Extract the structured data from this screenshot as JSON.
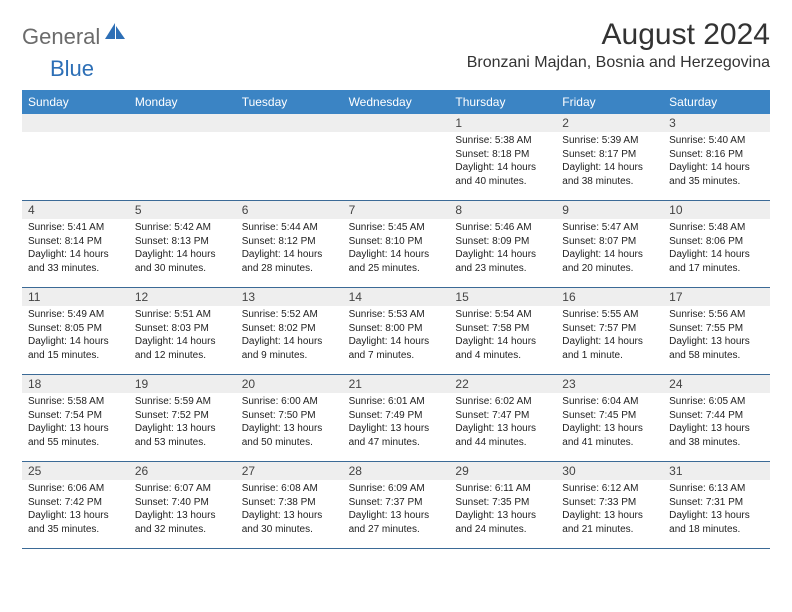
{
  "brand": {
    "text_gray": "General",
    "text_blue": "Blue"
  },
  "title": "August 2024",
  "location": "Bronzani Majdan, Bosnia and Herzegovina",
  "colors": {
    "header_bg": "#3b84c4",
    "header_text": "#ffffff",
    "daynum_bg": "#eeeeee",
    "week_border": "#3b6a96",
    "title_color": "#333333",
    "logo_gray": "#6b6b6b",
    "logo_blue": "#2d6fb6"
  },
  "dow": [
    "Sunday",
    "Monday",
    "Tuesday",
    "Wednesday",
    "Thursday",
    "Friday",
    "Saturday"
  ],
  "weeks": [
    [
      null,
      null,
      null,
      null,
      {
        "n": "1",
        "sr": "Sunrise: 5:38 AM",
        "ss": "Sunset: 8:18 PM",
        "d1": "Daylight: 14 hours",
        "d2": "and 40 minutes."
      },
      {
        "n": "2",
        "sr": "Sunrise: 5:39 AM",
        "ss": "Sunset: 8:17 PM",
        "d1": "Daylight: 14 hours",
        "d2": "and 38 minutes."
      },
      {
        "n": "3",
        "sr": "Sunrise: 5:40 AM",
        "ss": "Sunset: 8:16 PM",
        "d1": "Daylight: 14 hours",
        "d2": "and 35 minutes."
      }
    ],
    [
      {
        "n": "4",
        "sr": "Sunrise: 5:41 AM",
        "ss": "Sunset: 8:14 PM",
        "d1": "Daylight: 14 hours",
        "d2": "and 33 minutes."
      },
      {
        "n": "5",
        "sr": "Sunrise: 5:42 AM",
        "ss": "Sunset: 8:13 PM",
        "d1": "Daylight: 14 hours",
        "d2": "and 30 minutes."
      },
      {
        "n": "6",
        "sr": "Sunrise: 5:44 AM",
        "ss": "Sunset: 8:12 PM",
        "d1": "Daylight: 14 hours",
        "d2": "and 28 minutes."
      },
      {
        "n": "7",
        "sr": "Sunrise: 5:45 AM",
        "ss": "Sunset: 8:10 PM",
        "d1": "Daylight: 14 hours",
        "d2": "and 25 minutes."
      },
      {
        "n": "8",
        "sr": "Sunrise: 5:46 AM",
        "ss": "Sunset: 8:09 PM",
        "d1": "Daylight: 14 hours",
        "d2": "and 23 minutes."
      },
      {
        "n": "9",
        "sr": "Sunrise: 5:47 AM",
        "ss": "Sunset: 8:07 PM",
        "d1": "Daylight: 14 hours",
        "d2": "and 20 minutes."
      },
      {
        "n": "10",
        "sr": "Sunrise: 5:48 AM",
        "ss": "Sunset: 8:06 PM",
        "d1": "Daylight: 14 hours",
        "d2": "and 17 minutes."
      }
    ],
    [
      {
        "n": "11",
        "sr": "Sunrise: 5:49 AM",
        "ss": "Sunset: 8:05 PM",
        "d1": "Daylight: 14 hours",
        "d2": "and 15 minutes."
      },
      {
        "n": "12",
        "sr": "Sunrise: 5:51 AM",
        "ss": "Sunset: 8:03 PM",
        "d1": "Daylight: 14 hours",
        "d2": "and 12 minutes."
      },
      {
        "n": "13",
        "sr": "Sunrise: 5:52 AM",
        "ss": "Sunset: 8:02 PM",
        "d1": "Daylight: 14 hours",
        "d2": "and 9 minutes."
      },
      {
        "n": "14",
        "sr": "Sunrise: 5:53 AM",
        "ss": "Sunset: 8:00 PM",
        "d1": "Daylight: 14 hours",
        "d2": "and 7 minutes."
      },
      {
        "n": "15",
        "sr": "Sunrise: 5:54 AM",
        "ss": "Sunset: 7:58 PM",
        "d1": "Daylight: 14 hours",
        "d2": "and 4 minutes."
      },
      {
        "n": "16",
        "sr": "Sunrise: 5:55 AM",
        "ss": "Sunset: 7:57 PM",
        "d1": "Daylight: 14 hours",
        "d2": "and 1 minute."
      },
      {
        "n": "17",
        "sr": "Sunrise: 5:56 AM",
        "ss": "Sunset: 7:55 PM",
        "d1": "Daylight: 13 hours",
        "d2": "and 58 minutes."
      }
    ],
    [
      {
        "n": "18",
        "sr": "Sunrise: 5:58 AM",
        "ss": "Sunset: 7:54 PM",
        "d1": "Daylight: 13 hours",
        "d2": "and 55 minutes."
      },
      {
        "n": "19",
        "sr": "Sunrise: 5:59 AM",
        "ss": "Sunset: 7:52 PM",
        "d1": "Daylight: 13 hours",
        "d2": "and 53 minutes."
      },
      {
        "n": "20",
        "sr": "Sunrise: 6:00 AM",
        "ss": "Sunset: 7:50 PM",
        "d1": "Daylight: 13 hours",
        "d2": "and 50 minutes."
      },
      {
        "n": "21",
        "sr": "Sunrise: 6:01 AM",
        "ss": "Sunset: 7:49 PM",
        "d1": "Daylight: 13 hours",
        "d2": "and 47 minutes."
      },
      {
        "n": "22",
        "sr": "Sunrise: 6:02 AM",
        "ss": "Sunset: 7:47 PM",
        "d1": "Daylight: 13 hours",
        "d2": "and 44 minutes."
      },
      {
        "n": "23",
        "sr": "Sunrise: 6:04 AM",
        "ss": "Sunset: 7:45 PM",
        "d1": "Daylight: 13 hours",
        "d2": "and 41 minutes."
      },
      {
        "n": "24",
        "sr": "Sunrise: 6:05 AM",
        "ss": "Sunset: 7:44 PM",
        "d1": "Daylight: 13 hours",
        "d2": "and 38 minutes."
      }
    ],
    [
      {
        "n": "25",
        "sr": "Sunrise: 6:06 AM",
        "ss": "Sunset: 7:42 PM",
        "d1": "Daylight: 13 hours",
        "d2": "and 35 minutes."
      },
      {
        "n": "26",
        "sr": "Sunrise: 6:07 AM",
        "ss": "Sunset: 7:40 PM",
        "d1": "Daylight: 13 hours",
        "d2": "and 32 minutes."
      },
      {
        "n": "27",
        "sr": "Sunrise: 6:08 AM",
        "ss": "Sunset: 7:38 PM",
        "d1": "Daylight: 13 hours",
        "d2": "and 30 minutes."
      },
      {
        "n": "28",
        "sr": "Sunrise: 6:09 AM",
        "ss": "Sunset: 7:37 PM",
        "d1": "Daylight: 13 hours",
        "d2": "and 27 minutes."
      },
      {
        "n": "29",
        "sr": "Sunrise: 6:11 AM",
        "ss": "Sunset: 7:35 PM",
        "d1": "Daylight: 13 hours",
        "d2": "and 24 minutes."
      },
      {
        "n": "30",
        "sr": "Sunrise: 6:12 AM",
        "ss": "Sunset: 7:33 PM",
        "d1": "Daylight: 13 hours",
        "d2": "and 21 minutes."
      },
      {
        "n": "31",
        "sr": "Sunrise: 6:13 AM",
        "ss": "Sunset: 7:31 PM",
        "d1": "Daylight: 13 hours",
        "d2": "and 18 minutes."
      }
    ]
  ]
}
